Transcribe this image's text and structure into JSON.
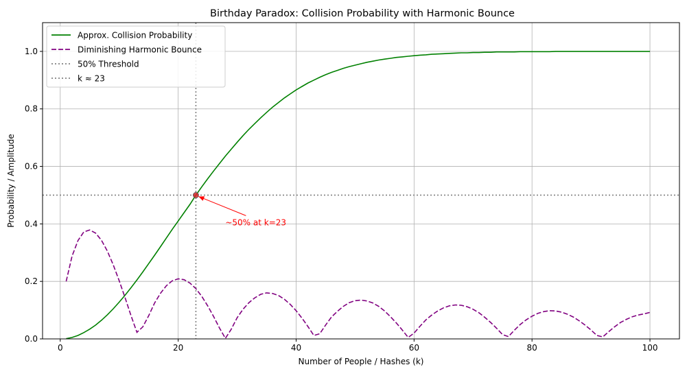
{
  "chart_data": {
    "type": "line",
    "title": "Birthday Paradox: Collision Probability with Harmonic Bounce",
    "xlabel": "Number of People / Hashes (k)",
    "ylabel": "Probability / Amplitude",
    "xlim": [
      -3,
      105
    ],
    "ylim": [
      0,
      1.1
    ],
    "xticks": [
      0,
      20,
      40,
      60,
      80,
      100
    ],
    "yticks": [
      0.0,
      0.2,
      0.4,
      0.6,
      0.8,
      1.0
    ],
    "xtick_labels": [
      "0",
      "20",
      "40",
      "60",
      "80",
      "100"
    ],
    "ytick_labels": [
      "0.0",
      "0.2",
      "0.4",
      "0.6",
      "0.8",
      "1.0"
    ],
    "grid": true,
    "legend_position": "top-left",
    "series": [
      {
        "name": "Approx. Collision Probability",
        "color": "#008000",
        "style": "solid",
        "x": [
          1,
          2,
          3,
          4,
          5,
          6,
          7,
          8,
          9,
          10,
          11,
          12,
          13,
          14,
          15,
          16,
          17,
          18,
          19,
          20,
          21,
          22,
          23,
          24,
          25,
          26,
          27,
          28,
          29,
          30,
          31,
          32,
          33,
          34,
          35,
          36,
          37,
          38,
          39,
          40,
          41,
          42,
          43,
          44,
          45,
          46,
          47,
          48,
          49,
          50,
          51,
          52,
          53,
          54,
          55,
          56,
          57,
          58,
          59,
          60,
          61,
          62,
          63,
          64,
          65,
          66,
          67,
          68,
          69,
          70,
          71,
          72,
          73,
          74,
          75,
          76,
          77,
          78,
          79,
          80,
          81,
          82,
          83,
          84,
          85,
          86,
          87,
          88,
          89,
          90,
          91,
          92,
          93,
          94,
          95,
          96,
          97,
          98,
          99,
          100
        ],
        "y": [
          0.001,
          0.005,
          0.012,
          0.022,
          0.034,
          0.048,
          0.065,
          0.084,
          0.105,
          0.128,
          0.152,
          0.178,
          0.205,
          0.233,
          0.262,
          0.291,
          0.321,
          0.351,
          0.381,
          0.41,
          0.439,
          0.468,
          0.5,
          0.529,
          0.557,
          0.584,
          0.61,
          0.636,
          0.66,
          0.684,
          0.707,
          0.729,
          0.749,
          0.769,
          0.788,
          0.806,
          0.822,
          0.838,
          0.852,
          0.866,
          0.878,
          0.89,
          0.9,
          0.91,
          0.919,
          0.927,
          0.934,
          0.941,
          0.947,
          0.952,
          0.957,
          0.962,
          0.966,
          0.97,
          0.973,
          0.976,
          0.979,
          0.981,
          0.983,
          0.985,
          0.987,
          0.988,
          0.99,
          0.991,
          0.992,
          0.993,
          0.994,
          0.995,
          0.995,
          0.996,
          0.996,
          0.997,
          0.997,
          0.998,
          0.998,
          0.998,
          0.998,
          0.999,
          0.999,
          0.999,
          0.999,
          0.999,
          0.999,
          1.0,
          1.0,
          1.0,
          1.0,
          1.0,
          1.0,
          1.0,
          1.0,
          1.0,
          1.0,
          1.0,
          1.0,
          1.0,
          1.0,
          1.0,
          1.0,
          1.0
        ]
      },
      {
        "name": "Diminishing Harmonic Bounce",
        "color": "#800080",
        "style": "dashed",
        "x": [
          1,
          2,
          3,
          4,
          5,
          6,
          7,
          8,
          9,
          10,
          11,
          12,
          13,
          14,
          15,
          16,
          17,
          18,
          19,
          20,
          21,
          22,
          23,
          24,
          25,
          26,
          27,
          28,
          29,
          30,
          31,
          32,
          33,
          34,
          35,
          36,
          37,
          38,
          39,
          40,
          41,
          42,
          43,
          44,
          45,
          46,
          47,
          48,
          49,
          50,
          51,
          52,
          53,
          54,
          55,
          56,
          57,
          58,
          59,
          60,
          61,
          62,
          63,
          64,
          65,
          66,
          67,
          68,
          69,
          70,
          71,
          72,
          73,
          74,
          75,
          76,
          77,
          78,
          79,
          80,
          81,
          82,
          83,
          84,
          85,
          86,
          87,
          88,
          89,
          90,
          91,
          92,
          93,
          94,
          95,
          96,
          97,
          98,
          99,
          100
        ],
        "y": [
          0.2,
          0.288,
          0.342,
          0.372,
          0.379,
          0.368,
          0.343,
          0.305,
          0.257,
          0.202,
          0.143,
          0.081,
          0.023,
          0.042,
          0.081,
          0.125,
          0.159,
          0.185,
          0.202,
          0.209,
          0.206,
          0.194,
          0.175,
          0.148,
          0.115,
          0.078,
          0.038,
          0.002,
          0.034,
          0.074,
          0.103,
          0.126,
          0.143,
          0.155,
          0.16,
          0.158,
          0.151,
          0.138,
          0.12,
          0.098,
          0.072,
          0.043,
          0.012,
          0.018,
          0.048,
          0.076,
          0.096,
          0.113,
          0.126,
          0.133,
          0.135,
          0.132,
          0.125,
          0.113,
          0.097,
          0.077,
          0.055,
          0.031,
          0.005,
          0.02,
          0.044,
          0.066,
          0.083,
          0.097,
          0.108,
          0.115,
          0.118,
          0.117,
          0.112,
          0.103,
          0.091,
          0.075,
          0.057,
          0.037,
          0.015,
          0.008,
          0.03,
          0.05,
          0.066,
          0.079,
          0.089,
          0.095,
          0.098,
          0.097,
          0.093,
          0.086,
          0.076,
          0.063,
          0.048,
          0.031,
          0.012,
          0.007,
          0.025,
          0.042,
          0.057,
          0.068,
          0.077,
          0.083,
          0.087,
          0.092
        ]
      },
      {
        "name": "50% Threshold",
        "color": "#808080",
        "style": "dotted",
        "orientation": "horizontal",
        "value": 0.5
      },
      {
        "name": "k ≈ 23",
        "color": "#808080",
        "style": "dotted",
        "orientation": "vertical",
        "value": 23
      }
    ],
    "highlight_point": {
      "x": 23,
      "y": 0.5,
      "color": "#d62728"
    },
    "annotation": {
      "text": "~50% at k=23",
      "color": "#ff0000",
      "x": 23,
      "y": 0.5,
      "text_x": 28,
      "text_y": 0.4
    }
  }
}
